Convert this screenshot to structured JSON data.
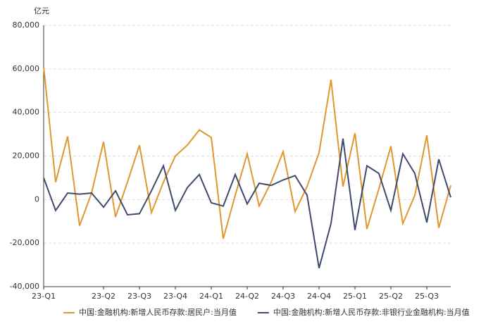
{
  "chart_data": {
    "type": "line",
    "y_label": "亿元",
    "categories": [
      "23-Q1",
      null,
      null,
      null,
      null,
      "23-Q2",
      null,
      null,
      "23-Q3",
      null,
      null,
      "23-Q4",
      null,
      null,
      "24-Q1",
      null,
      null,
      "24-Q2",
      null,
      null,
      "24-Q3",
      null,
      null,
      "24-Q4",
      null,
      null,
      "25-Q1",
      null,
      null,
      "25-Q2",
      null,
      null,
      "25-Q3",
      null,
      null
    ],
    "series": [
      {
        "name": "中国:金融机构:新增人民币存款:居民户:当月值",
        "color": "#e0982e",
        "values": [
          61000,
          8000,
          29000,
          -12000,
          3000,
          26500,
          -8000,
          8000,
          25000,
          -6000,
          8000,
          20000,
          25000,
          32000,
          28500,
          -18000,
          2000,
          21000,
          -3000,
          8000,
          22000,
          -5500,
          6000,
          21500,
          55000,
          6000,
          30500,
          -13500,
          5000,
          24500,
          -11000,
          2000,
          29500,
          -13000,
          6500
        ]
      },
      {
        "name": "中国:金融机构:新增人民币存款:非银行业金融机构:当月值",
        "color": "#3d4a6b",
        "values": [
          10000,
          -5000,
          3000,
          2500,
          3000,
          -3500,
          4000,
          -7000,
          -6500,
          4000,
          15500,
          -5000,
          5500,
          11500,
          -1500,
          -3000,
          11500,
          -2000,
          7500,
          6500,
          9000,
          11000,
          2000,
          -31500,
          -11000,
          28000,
          -14000,
          15500,
          12000,
          -5000,
          21000,
          12000,
          -10500,
          18500,
          1000
        ]
      }
    ],
    "ylim": [
      -40000,
      80000
    ],
    "yticks": [
      {
        "value": -40000,
        "label": "-40,000"
      },
      {
        "value": -20000,
        "label": "-20,000"
      },
      0,
      {
        "value": 20000,
        "label": "20,000"
      },
      {
        "value": 40000,
        "label": "40,000"
      },
      {
        "value": 60000,
        "label": "60,000"
      },
      {
        "value": 80000,
        "label": "80,000"
      }
    ],
    "grid": true
  }
}
